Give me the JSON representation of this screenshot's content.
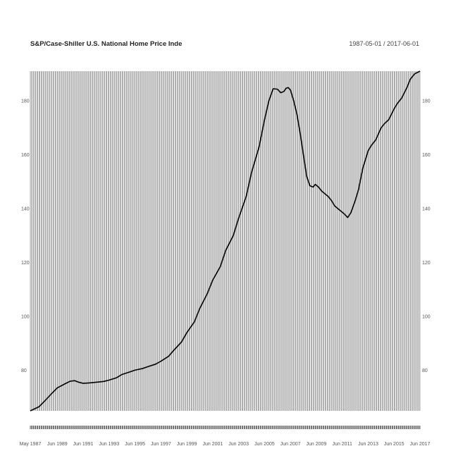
{
  "chart_data": {
    "type": "line",
    "title": "S&P/Case-Shiller U.S. National Home Price Inde",
    "date_range": "1987-05-01 / 2017-06-01",
    "xlabel": "",
    "ylabel": "",
    "ylim": [
      65,
      191
    ],
    "xlim": [
      "1987-05",
      "2017-06"
    ],
    "y_ticks": [
      80,
      100,
      120,
      140,
      160,
      180
    ],
    "y_tick_labels": [
      "80",
      "100",
      "120",
      "140",
      "160",
      "180"
    ],
    "x_ticks": [
      "1987-05",
      "1989-06",
      "1991-06",
      "1993-06",
      "1995-06",
      "1997-06",
      "1999-06",
      "2001-06",
      "2003-06",
      "2005-06",
      "2007-06",
      "2009-06",
      "2011-06",
      "2013-06",
      "2015-06",
      "2017-06"
    ],
    "x_tick_labels": [
      "May 1987",
      "Jun 1989",
      "Jun 1991",
      "Jun 1993",
      "Jun 1995",
      "Jun 1997",
      "Jun 1999",
      "Jun 2001",
      "Jun 2003",
      "Jun 2005",
      "Jun 2007",
      "Jun 2009",
      "Jun 2011",
      "Jun 2013",
      "Jun 2015",
      "Jun 2017"
    ],
    "grid": "vertical-monthly",
    "line_color": "#000000",
    "grid_color": "#555555",
    "series": [
      {
        "x": [
          "1987-05",
          "1988-01",
          "1988-06",
          "1989-01",
          "1989-06",
          "1990-01",
          "1990-06",
          "1990-10",
          "1991-02",
          "1991-06",
          "1992-01",
          "1992-06",
          "1993-01",
          "1993-06",
          "1994-01",
          "1994-06",
          "1995-01",
          "1995-06",
          "1996-01",
          "1996-06",
          "1997-01",
          "1997-06",
          "1998-01",
          "1998-06",
          "1999-01",
          "1999-06",
          "2000-01",
          "2000-06",
          "2001-01",
          "2001-06",
          "2002-01",
          "2002-06",
          "2003-01",
          "2003-06",
          "2004-01",
          "2004-06",
          "2005-01",
          "2005-06",
          "2005-10",
          "2006-02",
          "2006-06",
          "2006-09",
          "2006-12",
          "2007-02",
          "2007-04",
          "2007-06",
          "2007-09",
          "2007-12",
          "2008-03",
          "2008-06",
          "2008-09",
          "2008-12",
          "2009-03",
          "2009-05",
          "2009-08",
          "2009-11",
          "2010-02",
          "2010-05",
          "2010-08",
          "2010-11",
          "2011-02",
          "2011-05",
          "2011-08",
          "2011-11",
          "2012-02",
          "2012-06",
          "2012-09",
          "2013-01",
          "2013-06",
          "2013-09",
          "2014-01",
          "2014-06",
          "2014-09",
          "2015-01",
          "2015-06",
          "2015-09",
          "2016-01",
          "2016-06",
          "2016-09",
          "2017-01",
          "2017-06"
        ],
        "values": [
          63.7,
          66.5,
          68.5,
          71.5,
          73.5,
          75.0,
          76.0,
          76.2,
          75.6,
          75.2,
          75.4,
          75.6,
          75.9,
          76.4,
          77.3,
          78.5,
          79.4,
          80.1,
          80.7,
          81.4,
          82.3,
          83.4,
          85.2,
          87.5,
          90.5,
          94.0,
          98.0,
          103.0,
          108.5,
          113.5,
          118.5,
          124.5,
          130.0,
          136.5,
          144.5,
          153.5,
          163.0,
          173.0,
          180.0,
          184.5,
          184.3,
          183.0,
          183.5,
          184.7,
          184.9,
          184.0,
          180.0,
          175.0,
          168.0,
          160.0,
          152.0,
          148.5,
          148.0,
          149.0,
          148.0,
          146.5,
          145.5,
          144.5,
          143.0,
          141.0,
          140.0,
          139.0,
          138.0,
          136.7,
          138.5,
          143.0,
          147.0,
          155.0,
          161.5,
          163.5,
          165.5,
          170.0,
          171.5,
          173.0,
          177.0,
          179.0,
          181.0,
          185.0,
          188.0,
          190.0,
          191.5
        ]
      }
    ]
  }
}
